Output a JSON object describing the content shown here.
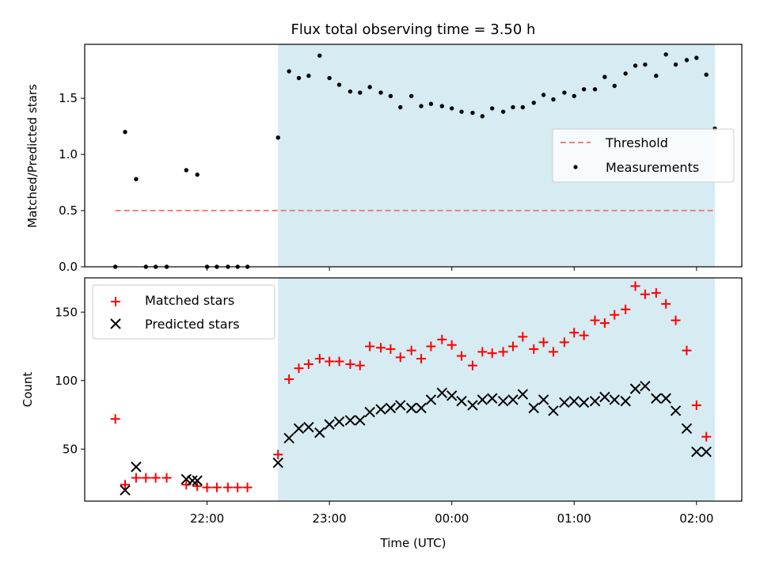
{
  "title": "Flux total observing time = 3.50 h",
  "x_tick_labels": [
    "22:00",
    "23:00",
    "00:00",
    "01:00",
    "02:00"
  ],
  "xlabel": "Time (UTC)",
  "colors": {
    "band": "#add8e6",
    "threshold": "#f08080",
    "measurements": "#000000",
    "matched": "#ff0000",
    "predicted": "#000000"
  },
  "chart_data": [
    {
      "type": "scatter",
      "xaxis": "time (UTC hours; values > 24 are after midnight)",
      "xlim": [
        21.0,
        26.37
      ],
      "ylim": [
        0.0,
        1.98
      ],
      "ylabel": "Matched/Predicted stars",
      "y_ticks": [
        0.0,
        0.5,
        1.0,
        1.5
      ],
      "y_tick_labels": [
        "0.0",
        "0.5",
        "1.0",
        "1.5"
      ],
      "shaded_region": [
        22.58,
        26.15
      ],
      "threshold": {
        "name": "Threshold",
        "y": 0.5,
        "x": [
          21.25,
          26.15
        ],
        "style": "dashed"
      },
      "legend_position": "center-right",
      "series": [
        {
          "name": "Measurements",
          "points": [
            [
              21.25,
              0.0
            ],
            [
              21.33,
              1.2
            ],
            [
              21.42,
              0.78
            ],
            [
              21.5,
              0.0
            ],
            [
              21.58,
              0.0
            ],
            [
              21.67,
              0.0
            ],
            [
              21.83,
              0.86
            ],
            [
              21.92,
              0.82
            ],
            [
              22.0,
              0.0
            ],
            [
              22.08,
              0.0
            ],
            [
              22.17,
              0.0
            ],
            [
              22.25,
              0.0
            ],
            [
              22.33,
              0.0
            ],
            [
              22.58,
              1.15
            ],
            [
              22.67,
              1.74
            ],
            [
              22.75,
              1.68
            ],
            [
              22.83,
              1.7
            ],
            [
              22.92,
              1.88
            ],
            [
              23.0,
              1.68
            ],
            [
              23.08,
              1.62
            ],
            [
              23.17,
              1.56
            ],
            [
              23.25,
              1.55
            ],
            [
              23.33,
              1.6
            ],
            [
              23.42,
              1.55
            ],
            [
              23.5,
              1.52
            ],
            [
              23.58,
              1.42
            ],
            [
              23.67,
              1.52
            ],
            [
              23.75,
              1.43
            ],
            [
              23.83,
              1.45
            ],
            [
              23.92,
              1.43
            ],
            [
              24.0,
              1.41
            ],
            [
              24.08,
              1.38
            ],
            [
              24.17,
              1.37
            ],
            [
              24.25,
              1.34
            ],
            [
              24.33,
              1.41
            ],
            [
              24.42,
              1.38
            ],
            [
              24.5,
              1.42
            ],
            [
              24.58,
              1.42
            ],
            [
              24.67,
              1.46
            ],
            [
              24.75,
              1.53
            ],
            [
              24.83,
              1.49
            ],
            [
              24.92,
              1.55
            ],
            [
              25.0,
              1.52
            ],
            [
              25.08,
              1.58
            ],
            [
              25.17,
              1.58
            ],
            [
              25.25,
              1.69
            ],
            [
              25.33,
              1.61
            ],
            [
              25.42,
              1.72
            ],
            [
              25.5,
              1.79
            ],
            [
              25.58,
              1.8
            ],
            [
              25.67,
              1.7
            ],
            [
              25.75,
              1.89
            ],
            [
              25.83,
              1.8
            ],
            [
              25.92,
              1.84
            ],
            [
              26.0,
              1.86
            ],
            [
              26.08,
              1.71
            ],
            [
              26.15,
              1.23
            ]
          ]
        }
      ]
    },
    {
      "type": "scatter",
      "xaxis": "time (UTC hours; values > 24 are after midnight)",
      "xlim": [
        21.0,
        26.37
      ],
      "ylim": [
        12,
        175
      ],
      "ylabel": "Count",
      "y_ticks": [
        50,
        100,
        150
      ],
      "y_tick_labels": [
        "50",
        "100",
        "150"
      ],
      "shaded_region": [
        22.58,
        26.15
      ],
      "legend_position": "top-left",
      "series": [
        {
          "name": "Matched stars",
          "marker": "plus",
          "points": [
            [
              21.25,
              72
            ],
            [
              21.33,
              24
            ],
            [
              21.42,
              29
            ],
            [
              21.5,
              29
            ],
            [
              21.58,
              29
            ],
            [
              21.67,
              29
            ],
            [
              21.83,
              24
            ],
            [
              21.92,
              23
            ],
            [
              22.0,
              22
            ],
            [
              22.08,
              22
            ],
            [
              22.17,
              22
            ],
            [
              22.25,
              22
            ],
            [
              22.33,
              22
            ],
            [
              22.58,
              46
            ],
            [
              22.67,
              101
            ],
            [
              22.75,
              109
            ],
            [
              22.83,
              112
            ],
            [
              22.92,
              116
            ],
            [
              23.0,
              114
            ],
            [
              23.08,
              114
            ],
            [
              23.17,
              112
            ],
            [
              23.25,
              111
            ],
            [
              23.33,
              125
            ],
            [
              23.42,
              124
            ],
            [
              23.5,
              123
            ],
            [
              23.58,
              117
            ],
            [
              23.67,
              122
            ],
            [
              23.75,
              116
            ],
            [
              23.83,
              125
            ],
            [
              23.92,
              130
            ],
            [
              24.0,
              126
            ],
            [
              24.08,
              118
            ],
            [
              24.17,
              111
            ],
            [
              24.25,
              121
            ],
            [
              24.33,
              120
            ],
            [
              24.42,
              121
            ],
            [
              24.5,
              125
            ],
            [
              24.58,
              132
            ],
            [
              24.67,
              123
            ],
            [
              24.75,
              128
            ],
            [
              24.83,
              121
            ],
            [
              24.92,
              128
            ],
            [
              25.0,
              135
            ],
            [
              25.08,
              133
            ],
            [
              25.17,
              144
            ],
            [
              25.25,
              142
            ],
            [
              25.33,
              148
            ],
            [
              25.42,
              152
            ],
            [
              25.5,
              169
            ],
            [
              25.58,
              163
            ],
            [
              25.67,
              164
            ],
            [
              25.75,
              156
            ],
            [
              25.83,
              144
            ],
            [
              25.92,
              122
            ],
            [
              26.0,
              82
            ],
            [
              26.08,
              59
            ]
          ]
        },
        {
          "name": "Predicted stars",
          "marker": "x",
          "points": [
            [
              21.33,
              20
            ],
            [
              21.42,
              37
            ],
            [
              21.83,
              28
            ],
            [
              21.88,
              27
            ],
            [
              21.92,
              27
            ],
            [
              22.58,
              40
            ],
            [
              22.67,
              58
            ],
            [
              22.75,
              65
            ],
            [
              22.83,
              66
            ],
            [
              22.92,
              62
            ],
            [
              23.0,
              68
            ],
            [
              23.08,
              70
            ],
            [
              23.17,
              71
            ],
            [
              23.25,
              71
            ],
            [
              23.33,
              77
            ],
            [
              23.42,
              79
            ],
            [
              23.5,
              80
            ],
            [
              23.58,
              82
            ],
            [
              23.67,
              80
            ],
            [
              23.75,
              80
            ],
            [
              23.83,
              86
            ],
            [
              23.92,
              91
            ],
            [
              24.0,
              89
            ],
            [
              24.08,
              85
            ],
            [
              24.17,
              82
            ],
            [
              24.25,
              86
            ],
            [
              24.33,
              87
            ],
            [
              24.42,
              85
            ],
            [
              24.5,
              86
            ],
            [
              24.58,
              90
            ],
            [
              24.67,
              80
            ],
            [
              24.75,
              86
            ],
            [
              24.83,
              78
            ],
            [
              24.92,
              84
            ],
            [
              25.0,
              85
            ],
            [
              25.08,
              84
            ],
            [
              25.17,
              85
            ],
            [
              25.25,
              88
            ],
            [
              25.33,
              86
            ],
            [
              25.42,
              85
            ],
            [
              25.5,
              94
            ],
            [
              25.58,
              96
            ],
            [
              25.67,
              87
            ],
            [
              25.75,
              87
            ],
            [
              25.83,
              78
            ],
            [
              25.92,
              65
            ],
            [
              26.0,
              48
            ],
            [
              26.08,
              48
            ]
          ]
        }
      ]
    }
  ]
}
